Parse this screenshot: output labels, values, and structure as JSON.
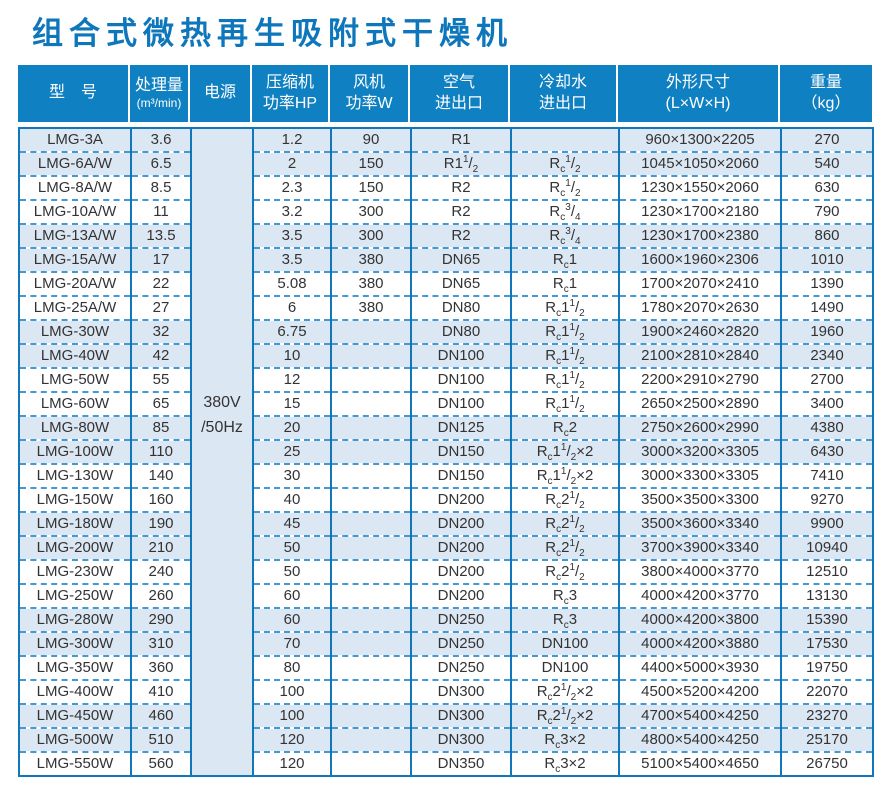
{
  "title": "组合式微热再生吸附式干燥机",
  "colors": {
    "title_blue": "#0e76ba",
    "header_bg": "#0f80c1",
    "border_blue": "#1277b8",
    "dash_blue": "#4599d2",
    "row_shaded": "#dce7f4",
    "text": "#333333"
  },
  "table": {
    "headers": [
      {
        "line1": "型　号",
        "line2": ""
      },
      {
        "line1": "处理量",
        "line2": "(m³/min)"
      },
      {
        "line1": "电源",
        "line2": ""
      },
      {
        "line1": "压缩机",
        "line2": "功率HP"
      },
      {
        "line1": "风机",
        "line2": "功率W"
      },
      {
        "line1": "空气",
        "line2": "进出口"
      },
      {
        "line1": "冷却水",
        "line2": "进出口"
      },
      {
        "line1": "外形尺寸",
        "line2": "(L×W×H)"
      },
      {
        "line1": "重量",
        "line2": "（kg）"
      }
    ],
    "power": {
      "line1": "380V",
      "line2": "/50Hz"
    },
    "rows": [
      {
        "model": "LMG-3A",
        "capacity": "3.6",
        "compressor_hp": "1.2",
        "fan_w": "90",
        "air_port": "R1",
        "cooling_port": "",
        "dimensions": "960×1300×2205",
        "weight": "270"
      },
      {
        "model": "LMG-6A/W",
        "capacity": "6.5",
        "compressor_hp": "2",
        "fan_w": "150",
        "air_port": "R1½",
        "cooling_port": "Rc½",
        "dimensions": "1045×1050×2060",
        "weight": "540"
      },
      {
        "model": "LMG-8A/W",
        "capacity": "8.5",
        "compressor_hp": "2.3",
        "fan_w": "150",
        "air_port": "R2",
        "cooling_port": "Rc½",
        "dimensions": "1230×1550×2060",
        "weight": "630"
      },
      {
        "model": "LMG-10A/W",
        "capacity": "11",
        "compressor_hp": "3.2",
        "fan_w": "300",
        "air_port": "R2",
        "cooling_port": "Rc¾",
        "dimensions": "1230×1700×2180",
        "weight": "790"
      },
      {
        "model": "LMG-13A/W",
        "capacity": "13.5",
        "compressor_hp": "3.5",
        "fan_w": "300",
        "air_port": "R2",
        "cooling_port": "Rc¾",
        "dimensions": "1230×1700×2380",
        "weight": "860"
      },
      {
        "model": "LMG-15A/W",
        "capacity": "17",
        "compressor_hp": "3.5",
        "fan_w": "380",
        "air_port": "DN65",
        "cooling_port": "Rc1",
        "dimensions": "1600×1960×2306",
        "weight": "1010"
      },
      {
        "model": "LMG-20A/W",
        "capacity": "22",
        "compressor_hp": "5.08",
        "fan_w": "380",
        "air_port": "DN65",
        "cooling_port": "Rc1",
        "dimensions": "1700×2070×2410",
        "weight": "1390"
      },
      {
        "model": "LMG-25A/W",
        "capacity": "27",
        "compressor_hp": "6",
        "fan_w": "380",
        "air_port": "DN80",
        "cooling_port": "Rc1½",
        "dimensions": "1780×2070×2630",
        "weight": "1490"
      },
      {
        "model": "LMG-30W",
        "capacity": "32",
        "compressor_hp": "6.75",
        "fan_w": "",
        "air_port": "DN80",
        "cooling_port": "Rc1½",
        "dimensions": "1900×2460×2820",
        "weight": "1960"
      },
      {
        "model": "LMG-40W",
        "capacity": "42",
        "compressor_hp": "10",
        "fan_w": "",
        "air_port": "DN100",
        "cooling_port": "Rc1½",
        "dimensions": "2100×2810×2840",
        "weight": "2340"
      },
      {
        "model": "LMG-50W",
        "capacity": "55",
        "compressor_hp": "12",
        "fan_w": "",
        "air_port": "DN100",
        "cooling_port": "Rc1½",
        "dimensions": "2200×2910×2790",
        "weight": "2700"
      },
      {
        "model": "LMG-60W",
        "capacity": "65",
        "compressor_hp": "15",
        "fan_w": "",
        "air_port": "DN100",
        "cooling_port": "Rc1½",
        "dimensions": "2650×2500×2890",
        "weight": "3400"
      },
      {
        "model": "LMG-80W",
        "capacity": "85",
        "compressor_hp": "20",
        "fan_w": "",
        "air_port": "DN125",
        "cooling_port": "Rc2",
        "dimensions": "2750×2600×2990",
        "weight": "4380"
      },
      {
        "model": "LMG-100W",
        "capacity": "110",
        "compressor_hp": "25",
        "fan_w": "",
        "air_port": "DN150",
        "cooling_port": "Rc1½×2",
        "dimensions": "3000×3200×3305",
        "weight": "6430"
      },
      {
        "model": "LMG-130W",
        "capacity": "140",
        "compressor_hp": "30",
        "fan_w": "",
        "air_port": "DN150",
        "cooling_port": "Rc1½×2",
        "dimensions": "3000×3300×3305",
        "weight": "7410"
      },
      {
        "model": "LMG-150W",
        "capacity": "160",
        "compressor_hp": "40",
        "fan_w": "",
        "air_port": "DN200",
        "cooling_port": "Rc2½",
        "dimensions": "3500×3500×3300",
        "weight": "9270"
      },
      {
        "model": "LMG-180W",
        "capacity": "190",
        "compressor_hp": "45",
        "fan_w": "",
        "air_port": "DN200",
        "cooling_port": "Rc2½",
        "dimensions": "3500×3600×3340",
        "weight": "9900"
      },
      {
        "model": "LMG-200W",
        "capacity": "210",
        "compressor_hp": "50",
        "fan_w": "",
        "air_port": "DN200",
        "cooling_port": "Rc2½",
        "dimensions": "3700×3900×3340",
        "weight": "10940"
      },
      {
        "model": "LMG-230W",
        "capacity": "240",
        "compressor_hp": "50",
        "fan_w": "",
        "air_port": "DN200",
        "cooling_port": "Rc2½",
        "dimensions": "3800×4000×3770",
        "weight": "12510"
      },
      {
        "model": "LMG-250W",
        "capacity": "260",
        "compressor_hp": "60",
        "fan_w": "",
        "air_port": "DN200",
        "cooling_port": "Rc3",
        "dimensions": "4000×4200×3770",
        "weight": "13130"
      },
      {
        "model": "LMG-280W",
        "capacity": "290",
        "compressor_hp": "60",
        "fan_w": "",
        "air_port": "DN250",
        "cooling_port": "Rc3",
        "dimensions": "4000×4200×3800",
        "weight": "15390"
      },
      {
        "model": "LMG-300W",
        "capacity": "310",
        "compressor_hp": "70",
        "fan_w": "",
        "air_port": "DN250",
        "cooling_port": "DN100",
        "dimensions": "4000×4200×3880",
        "weight": "17530"
      },
      {
        "model": "LMG-350W",
        "capacity": "360",
        "compressor_hp": "80",
        "fan_w": "",
        "air_port": "DN250",
        "cooling_port": "DN100",
        "dimensions": "4400×5000×3930",
        "weight": "19750"
      },
      {
        "model": "LMG-400W",
        "capacity": "410",
        "compressor_hp": "100",
        "fan_w": "",
        "air_port": "DN300",
        "cooling_port": "Rc2½×2",
        "dimensions": "4500×5200×4200",
        "weight": "22070"
      },
      {
        "model": "LMG-450W",
        "capacity": "460",
        "compressor_hp": "100",
        "fan_w": "",
        "air_port": "DN300",
        "cooling_port": "Rc2½×2",
        "dimensions": "4700×5400×4250",
        "weight": "23270"
      },
      {
        "model": "LMG-500W",
        "capacity": "510",
        "compressor_hp": "120",
        "fan_w": "",
        "air_port": "DN300",
        "cooling_port": "Rc3×2",
        "dimensions": "4800×5400×4250",
        "weight": "25170"
      },
      {
        "model": "LMG-550W",
        "capacity": "560",
        "compressor_hp": "120",
        "fan_w": "",
        "air_port": "DN350",
        "cooling_port": "Rc3×2",
        "dimensions": "5100×5400×4650",
        "weight": "26750"
      }
    ]
  }
}
